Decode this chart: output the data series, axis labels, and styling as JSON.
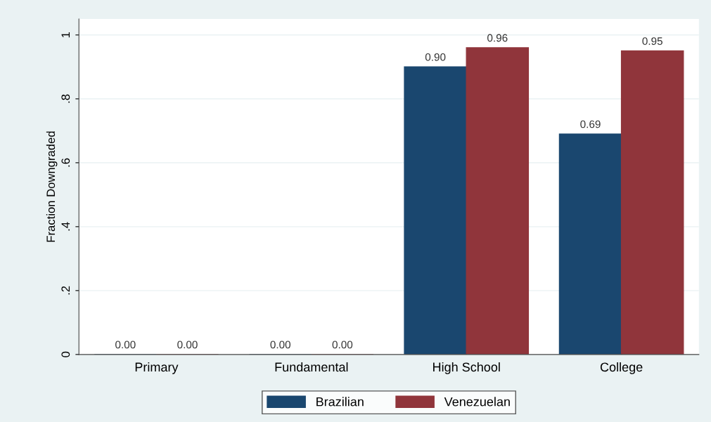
{
  "chart_data": {
    "type": "bar",
    "ylabel": "Fraction Downgraded",
    "categories": [
      "Primary",
      "Fundamental",
      "High School",
      "College"
    ],
    "series": [
      {
        "name": "Brazilian",
        "color": "#1a476f",
        "values": [
          0,
          0,
          0.9,
          0.69
        ],
        "value_labels": [
          "0.00",
          "0.00",
          "0.90",
          "0.69"
        ]
      },
      {
        "name": "Venezuelan",
        "color": "#90353b",
        "values": [
          0,
          0,
          0.96,
          0.95
        ],
        "value_labels": [
          "0.00",
          "0.00",
          "0.96",
          "0.95"
        ]
      }
    ],
    "ylim": [
      0,
      1.05
    ],
    "yticks": [
      {
        "value": 0,
        "label": "0"
      },
      {
        "value": 0.2,
        "label": ".2"
      },
      {
        "value": 0.4,
        "label": ".4"
      },
      {
        "value": 0.6,
        "label": ".6"
      },
      {
        "value": 0.8,
        "label": ".8"
      },
      {
        "value": 1,
        "label": "1"
      }
    ],
    "grid": "y",
    "legend": "bottom"
  }
}
